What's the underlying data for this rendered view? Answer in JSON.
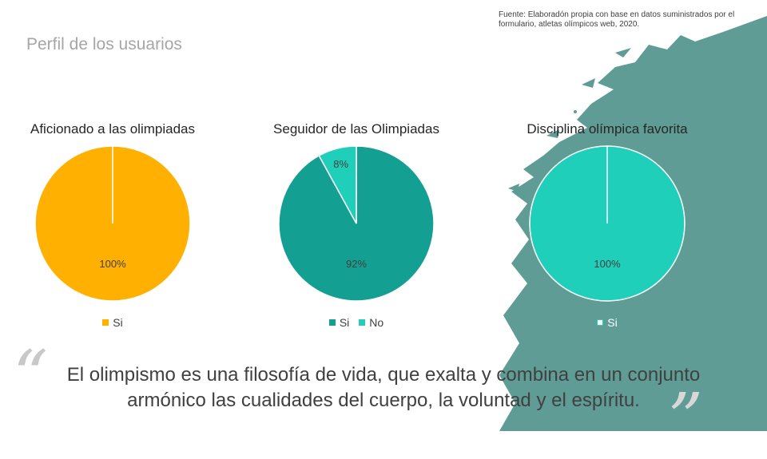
{
  "source_note": "Fuente: Elaboradón propia con base en datos suministrados por el formulario, atletas olímpicos web, 2020.",
  "page_title": "Perfil de los usuarios",
  "quote": {
    "line1": "El olimpismo es una filosofía de vida, que exalta y combina en un conjunto",
    "line2": "armónico las cualidades del cuerpo, la voluntad y el espíritu.",
    "open_mark": "“",
    "close_mark": "”"
  },
  "colors": {
    "accent_teal_bg": "#5f9c95",
    "yellow": "#ffb000",
    "dark_teal": "#13a092",
    "light_teal": "#1fcfba"
  },
  "chart_data": [
    {
      "type": "pie",
      "title": "Aficionado a las olimpiadas",
      "categories": [
        "Si"
      ],
      "values": [
        100
      ],
      "data_labels": [
        "100%"
      ],
      "colors": [
        "#ffb000"
      ],
      "legend": "bottom"
    },
    {
      "type": "pie",
      "title": "Seguidor de las Olimpiadas",
      "categories": [
        "Si",
        "No"
      ],
      "values": [
        92,
        8
      ],
      "data_labels": [
        "92%",
        "8%"
      ],
      "colors": [
        "#13a092",
        "#1fcfba"
      ],
      "legend": "bottom"
    },
    {
      "type": "pie",
      "title": "Disciplina olímpica favorita",
      "categories": [
        "Si"
      ],
      "values": [
        100
      ],
      "data_labels": [
        "100%"
      ],
      "colors": [
        "#1fcfba"
      ],
      "legend": "bottom"
    }
  ]
}
